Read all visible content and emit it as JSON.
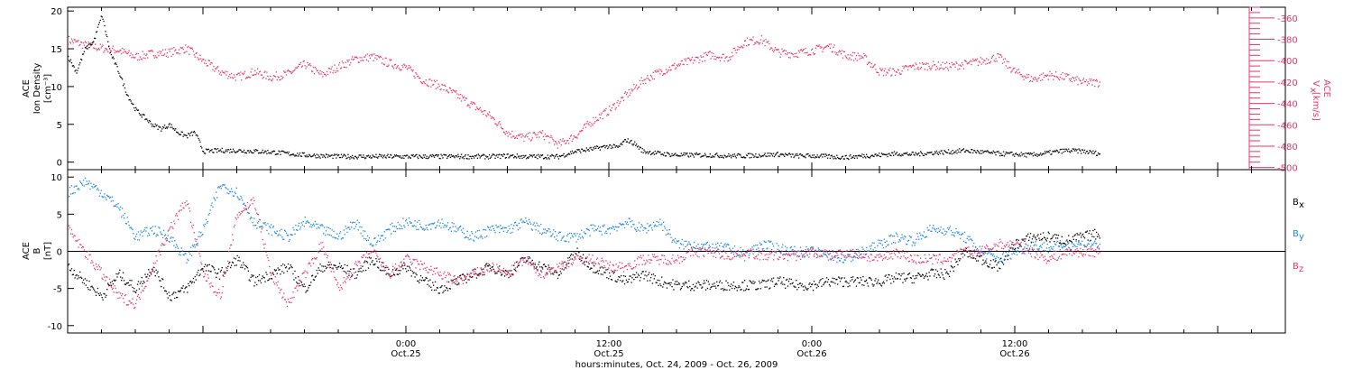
{
  "colors": {
    "black": "#000000",
    "pink": "#e8366a",
    "blue": "#1a86e0",
    "background": "#ffffff"
  },
  "xlabel": "hours:minutes, Oct. 24, 2009 - Oct. 26, 2009",
  "chart_data": [
    {
      "type": "scatter",
      "panel": "top",
      "title": "",
      "xlabel": "hours:minutes, Oct. 24, 2009 - Oct. 26, 2009",
      "ylabel": [
        "ACE",
        "Ion Density",
        "[cm⁻³]"
      ],
      "ylabel_right": [
        "ACE",
        "V",
        "x",
        " [km/s]"
      ],
      "xlim_hours": [
        -20,
        52
      ],
      "ylim": [
        -1,
        20.5
      ],
      "ylim_right": [
        -502,
        -350
      ],
      "yticks": [
        0,
        5,
        10,
        15,
        20
      ],
      "yticks_right": [
        -360,
        -380,
        -400,
        -420,
        -440,
        -460,
        -480,
        -500
      ],
      "xticks": [
        {
          "hour": 0,
          "label": "0:00",
          "sub": "Oct.25"
        },
        {
          "hour": 12,
          "label": "12:00",
          "sub": "Oct.25"
        },
        {
          "hour": 24,
          "label": "0:00",
          "sub": "Oct.26"
        },
        {
          "hour": 36,
          "label": "12:00",
          "sub": "Oct.26"
        }
      ],
      "series": [
        {
          "color": "#000000",
          "axis": "left",
          "x": [
            -20,
            -19.5,
            -19,
            -18.5,
            -18,
            -17.5,
            -17,
            -16.5,
            -16,
            -15.5,
            -15,
            -14.5,
            -14,
            -13.5,
            -13,
            -12.5,
            -12,
            -11,
            -10,
            -9,
            -8,
            -7,
            -6,
            -5,
            -4,
            -3,
            -2,
            -1,
            0,
            1,
            2,
            3,
            4,
            5,
            6,
            7,
            8,
            9,
            10,
            11,
            12,
            12.5,
            13,
            13.5,
            14,
            15,
            16,
            17,
            18,
            19,
            20,
            21,
            22,
            23,
            24,
            25,
            26,
            27,
            28,
            29,
            30,
            31,
            32,
            33,
            34,
            35,
            36,
            37,
            38,
            39,
            40,
            41
          ],
          "y": [
            14,
            12,
            15,
            16,
            19.5,
            14.5,
            12,
            9,
            7,
            6,
            5,
            4.5,
            5,
            4,
            3.5,
            4,
            1.5,
            1.6,
            1.6,
            1.5,
            1.4,
            1.2,
            1.0,
            0.9,
            0.8,
            0.8,
            0.8,
            0.8,
            0.8,
            0.8,
            0.8,
            0.8,
            0.8,
            0.8,
            0.9,
            0.8,
            0.8,
            0.8,
            1.5,
            1.8,
            2.2,
            2.0,
            3.0,
            2.5,
            1.5,
            1.2,
            1.0,
            1.0,
            1.0,
            0.9,
            0.9,
            1.0,
            1.1,
            0.9,
            0.9,
            0.8,
            0.7,
            0.9,
            1.0,
            1.2,
            1.1,
            1.3,
            1.4,
            1.6,
            1.4,
            1.2,
            1.1,
            1.0,
            1.3,
            1.6,
            1.5,
            1.2
          ]
        },
        {
          "color": "#e8366a",
          "axis": "right",
          "x": [
            -20,
            -19,
            -18,
            -17,
            -16,
            -15,
            -14,
            -13,
            -12,
            -11,
            -10,
            -9,
            -8,
            -7,
            -6,
            -5,
            -4,
            -3,
            -2,
            -1,
            0,
            1,
            2,
            3,
            4,
            5,
            6,
            7,
            8,
            9,
            10,
            11,
            12,
            13,
            14,
            15,
            16,
            17,
            18,
            19,
            20,
            21,
            22,
            23,
            24,
            25,
            26,
            27,
            28,
            29,
            30,
            31,
            32,
            33,
            34,
            35,
            36,
            37,
            38,
            39,
            40,
            41
          ],
          "y": [
            -380,
            -385,
            -388,
            -390,
            -396,
            -393,
            -392,
            -388,
            -400,
            -410,
            -415,
            -410,
            -415,
            -412,
            -403,
            -413,
            -405,
            -398,
            -396,
            -402,
            -406,
            -418,
            -423,
            -432,
            -442,
            -452,
            -467,
            -472,
            -468,
            -478,
            -470,
            -456,
            -446,
            -432,
            -418,
            -410,
            -404,
            -399,
            -394,
            -397,
            -382,
            -380,
            -392,
            -393,
            -390,
            -386,
            -395,
            -396,
            -410,
            -410,
            -405,
            -404,
            -405,
            -403,
            -400,
            -396,
            -410,
            -417,
            -413,
            -415,
            -420,
            -420
          ]
        }
      ]
    },
    {
      "type": "scatter",
      "panel": "bottom",
      "title": "",
      "ylabel": [
        "ACE",
        "B",
        "[nT]"
      ],
      "xlim_hours": [
        -20,
        52
      ],
      "ylim": [
        -11,
        11
      ],
      "yticks": [
        -10,
        -5,
        0,
        5,
        10
      ],
      "legend": [
        "B",
        "B",
        "B"
      ],
      "legend_subscripts": [
        "x",
        "y",
        "z"
      ],
      "series": [
        {
          "name": "Bx",
          "color": "#000000",
          "x": [
            -20,
            -19,
            -18,
            -17,
            -16,
            -15,
            -14,
            -13,
            -12,
            -11,
            -10,
            -9,
            -8,
            -7,
            -6,
            -5,
            -4,
            -3,
            -2,
            -1,
            0,
            1,
            2,
            3,
            4,
            5,
            6,
            7,
            8,
            9,
            10,
            11,
            12,
            13,
            14,
            15,
            16,
            17,
            18,
            19,
            20,
            21,
            22,
            23,
            24,
            25,
            26,
            27,
            28,
            29,
            30,
            31,
            32,
            33,
            34,
            35,
            36,
            37,
            38,
            39,
            40,
            41
          ],
          "y": [
            -2,
            -4,
            -6,
            -3,
            -5,
            -2,
            -6,
            -5,
            -2,
            -3,
            -1,
            -4,
            -3,
            -2,
            -5,
            -2,
            -2,
            -3,
            -1,
            -3,
            -2,
            -4,
            -5,
            -4,
            -3,
            -2,
            -3,
            -1,
            -2,
            -3,
            0,
            -2,
            -3,
            -4,
            -3,
            -4,
            -4.5,
            -4.5,
            -4.5,
            -4.5,
            -4.5,
            -4.5,
            -4,
            -4.5,
            -4.5,
            -4,
            -4,
            -4,
            -4,
            -3.5,
            -3.5,
            -3,
            -3,
            0,
            -1,
            -2,
            1,
            2,
            2,
            1.5,
            2,
            2.5
          ]
        },
        {
          "name": "By",
          "color": "#1a86e0",
          "x": [
            -20,
            -19,
            -18,
            -17,
            -16,
            -15,
            -14,
            -13,
            -12,
            -11,
            -10,
            -9,
            -8,
            -7,
            -6,
            -5,
            -4,
            -3,
            -2,
            -1,
            0,
            1,
            2,
            3,
            4,
            5,
            6,
            7,
            8,
            9,
            10,
            11,
            12,
            13,
            14,
            15,
            16,
            17,
            18,
            19,
            20,
            21,
            22,
            23,
            24,
            25,
            26,
            27,
            28,
            29,
            30,
            31,
            32,
            33,
            34,
            35,
            36,
            37,
            38,
            39,
            40,
            41
          ],
          "y": [
            8,
            9.5,
            8,
            6,
            2,
            3,
            2,
            -1,
            3,
            9,
            8,
            4,
            3,
            2,
            4,
            3,
            2,
            4,
            1,
            3,
            4,
            3.5,
            4,
            3,
            2,
            3,
            3,
            4,
            3,
            2,
            2,
            3,
            3,
            4,
            3,
            4,
            1,
            1,
            0.5,
            0.5,
            -0.5,
            1,
            0.5,
            0,
            0,
            -0.5,
            -1,
            0,
            1,
            2,
            1.5,
            3,
            3,
            2,
            0,
            -1,
            0,
            1,
            0.5,
            1,
            1,
            1
          ]
        },
        {
          "name": "Bz",
          "color": "#e8366a",
          "x": [
            -20,
            -19,
            -18,
            -17,
            -16,
            -15,
            -14,
            -13,
            -12,
            -11,
            -10,
            -9,
            -8,
            -7,
            -6,
            -5,
            -4,
            -3,
            -2,
            -1,
            0,
            1,
            2,
            3,
            4,
            5,
            6,
            7,
            8,
            9,
            10,
            11,
            12,
            13,
            14,
            15,
            16,
            17,
            18,
            19,
            20,
            21,
            22,
            23,
            24,
            25,
            26,
            27,
            28,
            29,
            30,
            31,
            32,
            33,
            34,
            35,
            36,
            37,
            38,
            39,
            40,
            41
          ],
          "y": [
            3,
            0,
            -3,
            -6,
            -7,
            -2,
            3,
            7,
            -3,
            -6,
            5,
            7,
            -3,
            -7,
            -3,
            1,
            -5,
            -2,
            0,
            -3,
            -1,
            -2,
            -3,
            -4,
            -3,
            -2,
            -3,
            -1,
            -3,
            -2,
            -1,
            -1,
            -2,
            -2,
            -1,
            -1,
            -1,
            0,
            0,
            -0.5,
            0,
            -0.5,
            -0.5,
            -0.5,
            0,
            -0.5,
            0,
            -0.5,
            -1,
            0,
            -1,
            -1,
            -1,
            0,
            0,
            1,
            1,
            0,
            -1,
            0,
            0,
            0
          ]
        }
      ]
    }
  ]
}
